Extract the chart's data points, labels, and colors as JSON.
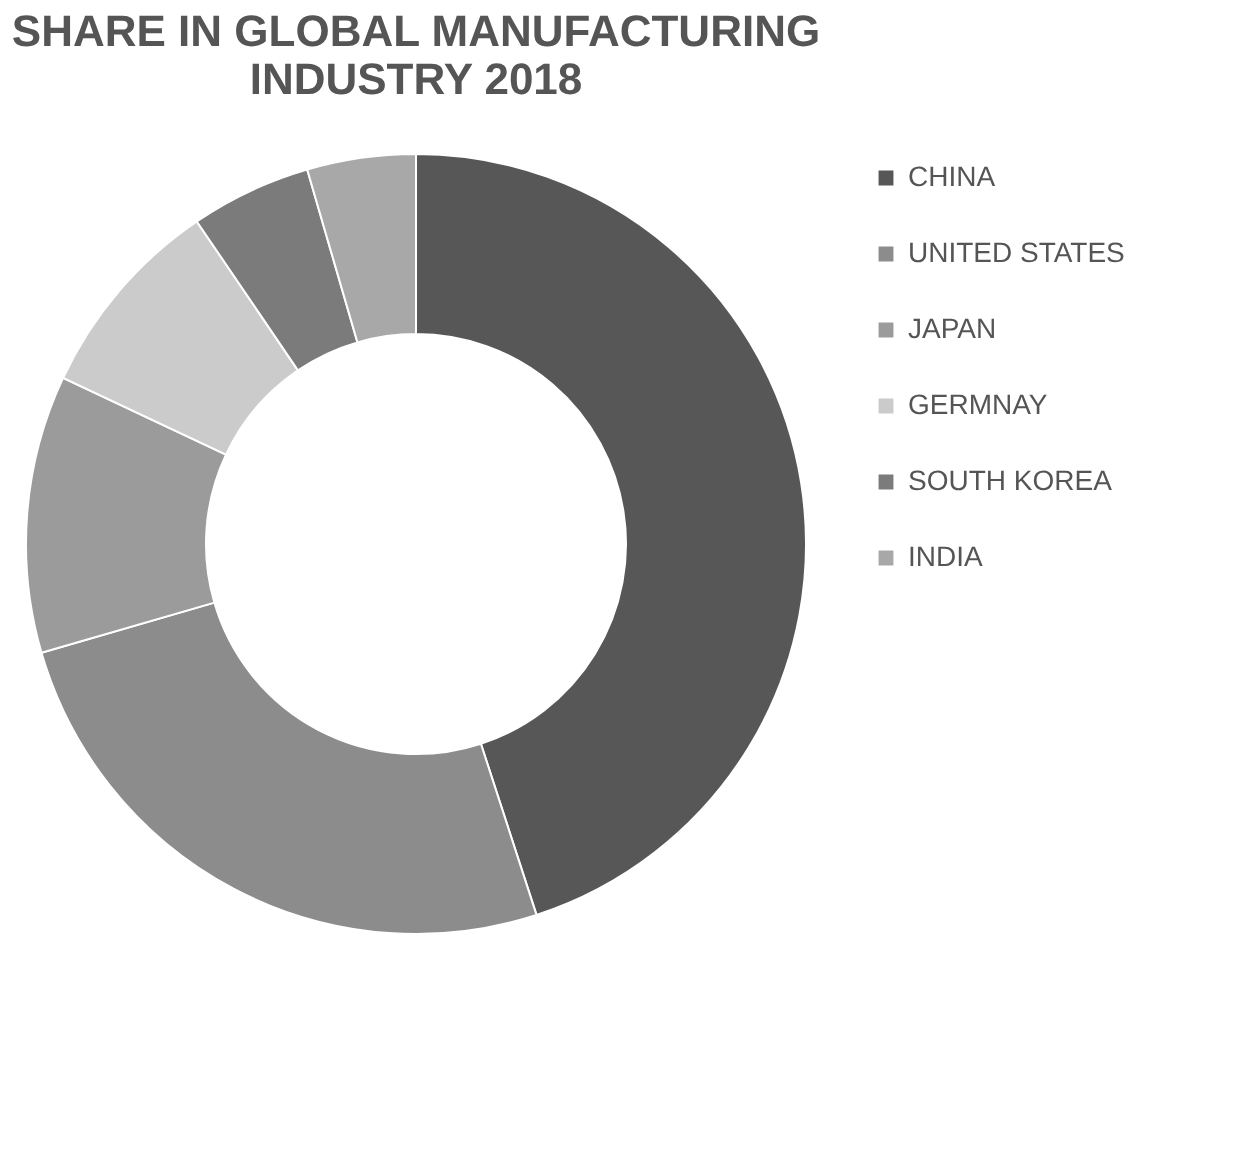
{
  "chart_data": {
    "type": "donut",
    "title": "SHARE IN GLOBAL MANUFACTURING INDUSTRY 2018",
    "categories": [
      "CHINA",
      "UNITED STATES",
      "JAPAN",
      "GERMNAY",
      "SOUTH KOREA",
      "INDIA"
    ],
    "values": [
      45,
      25.5,
      11.5,
      8.5,
      5,
      4.5
    ],
    "colors": [
      "#575757",
      "#8c8c8c",
      "#9b9b9b",
      "#cbcbcb",
      "#7b7b7b",
      "#a8a8a8"
    ],
    "legend": "right"
  }
}
